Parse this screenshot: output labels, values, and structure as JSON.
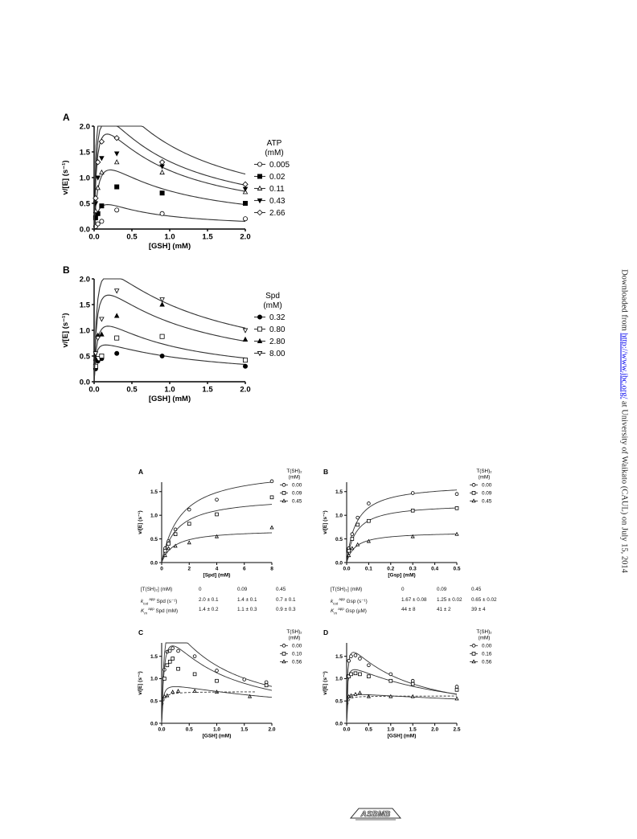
{
  "sidebar": {
    "prefix": "Downloaded from ",
    "link": "http://www.jbc.org/",
    "suffix": " at University of Waikato (CAUL) on July 15, 2014"
  },
  "logo_text": "ASBMB",
  "figA": {
    "panel": "A",
    "chart_data": {
      "type": "scatter",
      "xlabel": "[GSH] (mM)",
      "ylabel": "v/[E] (s⁻¹)",
      "xlim": [
        0,
        2.0
      ],
      "ylim": [
        0,
        2.0
      ],
      "xticks": [
        "0.0",
        "0.5",
        "1.0",
        "1.5",
        "2.0"
      ],
      "yticks": [
        "0.0",
        "0.5",
        "1.0",
        "1.5",
        "2.0"
      ],
      "legend_title": [
        "ATP",
        "(mM)"
      ],
      "legend_placement": "right",
      "series": [
        {
          "name": "0.005",
          "marker": "circle-open",
          "x": [
            0.02,
            0.05,
            0.1,
            0.3,
            0.9,
            2.0
          ],
          "y": [
            0.05,
            0.1,
            0.15,
            0.37,
            0.3,
            0.2
          ],
          "curve": {
            "a": 0.9,
            "b": 0.08,
            "c": 0.4
          }
        },
        {
          "name": "0.02",
          "marker": "square-filled",
          "x": [
            0.02,
            0.05,
            0.1,
            0.3,
            0.9,
            2.0
          ],
          "y": [
            0.22,
            0.3,
            0.45,
            0.82,
            0.7,
            0.5
          ],
          "curve": {
            "a": 1.85,
            "b": 0.065,
            "c": 0.7
          }
        },
        {
          "name": "0.11",
          "marker": "triangle-open",
          "x": [
            0.02,
            0.05,
            0.1,
            0.3,
            0.9,
            2.0
          ],
          "y": [
            0.35,
            0.8,
            1.1,
            1.3,
            1.1,
            0.72
          ],
          "curve": {
            "a": 2.7,
            "b": 0.04,
            "c": 0.75
          }
        },
        {
          "name": "0.43",
          "marker": "triangle-down-filled",
          "x": [
            0.02,
            0.05,
            0.1,
            0.3,
            0.9,
            2.0
          ],
          "y": [
            0.5,
            1.0,
            1.38,
            1.47,
            1.22,
            0.78
          ],
          "curve": {
            "a": 3.0,
            "b": 0.035,
            "c": 0.8
          }
        },
        {
          "name": "2.66",
          "marker": "diamond-open",
          "x": [
            0.02,
            0.05,
            0.1,
            0.3,
            0.9,
            2.0
          ],
          "y": [
            0.6,
            1.3,
            1.7,
            1.77,
            1.3,
            0.87
          ],
          "curve": {
            "a": 3.6,
            "b": 0.03,
            "c": 0.85
          }
        }
      ]
    }
  },
  "figB": {
    "panel": "B",
    "chart_data": {
      "type": "scatter",
      "xlabel": "[GSH] (mM)",
      "ylabel": "v/[E] (s⁻¹)",
      "xlim": [
        0,
        2.0
      ],
      "ylim": [
        0,
        2.0
      ],
      "xticks": [
        "0.0",
        "0.5",
        "1.0",
        "1.5",
        "2.0"
      ],
      "yticks": [
        "0.0",
        "0.5",
        "1.0",
        "1.5",
        "2.0"
      ],
      "legend_title": [
        "Spd",
        "(mM)"
      ],
      "legend_placement": "right",
      "series": [
        {
          "name": "0.32",
          "marker": "circle-filled",
          "x": [
            0.02,
            0.05,
            0.1,
            0.3,
            0.9,
            2.0
          ],
          "y": [
            0.25,
            0.4,
            0.45,
            0.55,
            0.5,
            0.3
          ],
          "curve": {
            "a": 0.9,
            "b": 0.02,
            "c": 1.2
          }
        },
        {
          "name": "0.80",
          "marker": "square-open",
          "x": [
            0.02,
            0.05,
            0.1,
            0.3,
            0.9,
            2.0
          ],
          "y": [
            0.3,
            0.45,
            0.5,
            0.85,
            0.88,
            0.42
          ],
          "curve": {
            "a": 1.55,
            "b": 0.04,
            "c": 0.85
          }
        },
        {
          "name": "2.80",
          "marker": "triangle-filled",
          "x": [
            0.02,
            0.05,
            0.1,
            0.3,
            0.9,
            2.0
          ],
          "y": [
            0.45,
            0.9,
            0.92,
            1.28,
            1.5,
            0.82
          ],
          "curve": {
            "a": 2.3,
            "b": 0.035,
            "c": 1.05
          }
        },
        {
          "name": "8.00",
          "marker": "triangle-down-open",
          "x": [
            0.02,
            0.05,
            0.1,
            0.3,
            0.9,
            2.0
          ],
          "y": [
            0.55,
            0.85,
            1.22,
            1.77,
            1.6,
            1.0
          ],
          "curve": {
            "a": 2.8,
            "b": 0.035,
            "c": 1.2
          }
        }
      ]
    }
  },
  "fig2A": {
    "panel": "A",
    "chart_data": {
      "type": "scatter",
      "xlabel": "[Spd] (mM)",
      "ylabel": "v/[E] (s⁻¹)",
      "xlim": [
        0,
        8
      ],
      "ylim": [
        0,
        1.7
      ],
      "xticks": [
        "0",
        "2",
        "4",
        "6",
        "8"
      ],
      "yticks": [
        "0.0",
        "0.5",
        "1.0",
        "1.5"
      ],
      "legend_title": [
        "T(SH)₂",
        "(mM)"
      ],
      "legend_placement": "top-right",
      "series": [
        {
          "name": "0.00",
          "marker": "circle-open",
          "x": [
            0.25,
            0.5,
            1,
            2,
            4,
            8
          ],
          "y": [
            0.3,
            0.45,
            0.7,
            1.12,
            1.33,
            1.72
          ],
          "curve": {
            "type": "mm",
            "vmax": 2.0,
            "km": 1.4
          }
        },
        {
          "name": "0.09",
          "marker": "square-open",
          "x": [
            0.25,
            0.5,
            1,
            2,
            4,
            8
          ],
          "y": [
            0.25,
            0.4,
            0.6,
            0.82,
            1.02,
            1.38
          ],
          "curve": {
            "type": "mm",
            "vmax": 1.4,
            "km": 1.1
          }
        },
        {
          "name": "0.45",
          "marker": "triangle-open",
          "x": [
            0.25,
            0.5,
            1,
            2,
            4,
            8
          ],
          "y": [
            0.15,
            0.3,
            0.35,
            0.42,
            0.55,
            0.74
          ],
          "curve": {
            "type": "mm",
            "vmax": 0.7,
            "km": 0.9
          }
        }
      ]
    },
    "table": {
      "header": {
        "label": "[T(SH)₂] (mM)",
        "values": [
          "0",
          "0.09",
          "0.45"
        ]
      },
      "rows": [
        {
          "label": "k",
          "sub": "cat",
          "sup": " app",
          "tail": " Spd (s⁻¹)",
          "values": [
            "2.0 ± 0.1",
            "1.4 ± 0.1",
            "0.7 ± 0.1"
          ]
        },
        {
          "label": "K",
          "sub": "m",
          "sup": " app",
          "tail": " Spd (mM)",
          "values": [
            "1.4 ± 0.2",
            "1.1 ± 0.3",
            "0.9 ± 0.3"
          ]
        }
      ]
    }
  },
  "fig2B": {
    "panel": "B",
    "chart_data": {
      "type": "scatter",
      "xlabel": "[Gsp] (mM)",
      "ylabel": "v/[E] (s⁻¹)",
      "xlim": [
        0,
        0.5
      ],
      "ylim": [
        0,
        1.7
      ],
      "xticks": [
        "0.0",
        "0.1",
        "0.2",
        "0.3",
        "0.4",
        "0.5"
      ],
      "yticks": [
        "0.0",
        "0.5",
        "1.0",
        "1.5"
      ],
      "legend_title": [
        "T(SH)₂",
        "(mM)"
      ],
      "legend_placement": "top-right",
      "series": [
        {
          "name": "0.00",
          "marker": "circle-open",
          "x": [
            0.01,
            0.025,
            0.05,
            0.1,
            0.3,
            0.5
          ],
          "y": [
            0.3,
            0.6,
            0.95,
            1.25,
            1.47,
            1.45
          ],
          "curve": {
            "type": "mm",
            "vmax": 1.67,
            "km": 0.044
          }
        },
        {
          "name": "0.09",
          "marker": "square-open",
          "x": [
            0.01,
            0.025,
            0.05,
            0.1,
            0.3,
            0.5
          ],
          "y": [
            0.25,
            0.5,
            0.8,
            0.88,
            1.1,
            1.15
          ],
          "curve": {
            "type": "mm",
            "vmax": 1.25,
            "km": 0.041
          }
        },
        {
          "name": "0.45",
          "marker": "triangle-open",
          "x": [
            0.01,
            0.025,
            0.05,
            0.1,
            0.3,
            0.5
          ],
          "y": [
            0.15,
            0.3,
            0.38,
            0.45,
            0.55,
            0.6
          ],
          "curve": {
            "type": "mm",
            "vmax": 0.65,
            "km": 0.039
          }
        }
      ]
    },
    "table": {
      "header": {
        "label": "[T(SH)₂] (mM)",
        "values": [
          "0",
          "0.09",
          "0.45"
        ]
      },
      "rows": [
        {
          "label": "k",
          "sub": "cat",
          "sup": " app",
          "tail": " Gsp (s⁻¹)",
          "values": [
            "1.67 ± 0.08",
            "1.25 ± 0.02",
            "0.65 ± 0.02"
          ]
        },
        {
          "label": "K",
          "sub": "m",
          "sup": " app",
          "tail": " Gsp (µM)",
          "values": [
            "44 ± 8",
            "41 ± 2",
            "39 ± 4"
          ]
        }
      ]
    }
  },
  "fig2C": {
    "panel": "C",
    "chart_data": {
      "type": "scatter",
      "xlabel": "[GSH] (mM)",
      "ylabel": "v/[E] (s⁻¹)",
      "xlim": [
        0,
        2.0
      ],
      "ylim": [
        0,
        1.8
      ],
      "xticks": [
        "0.0",
        "0.5",
        "1.0",
        "1.5",
        "2.0"
      ],
      "yticks": [
        "0.0",
        "0.5",
        "1.0",
        "1.5"
      ],
      "legend_title": [
        "T(SH)₂",
        "(mM)"
      ],
      "legend_placement": "top-right",
      "series": [
        {
          "name": "0.00",
          "marker": "circle-open",
          "x": [
            0.05,
            0.1,
            0.15,
            0.2,
            0.3,
            0.6,
            1.0,
            1.5,
            1.9
          ],
          "y": [
            1.2,
            1.6,
            1.62,
            1.68,
            1.62,
            1.5,
            1.18,
            0.98,
            0.92
          ],
          "curve": {
            "a": 3.2,
            "b": 0.05,
            "c": 0.7
          }
        },
        {
          "name": "0.10",
          "marker": "square-open",
          "x": [
            0.05,
            0.1,
            0.15,
            0.2,
            0.3,
            0.6,
            1.0,
            1.9
          ],
          "y": [
            1.0,
            1.3,
            1.38,
            1.45,
            1.22,
            1.1,
            0.95,
            0.85
          ],
          "curve": {
            "a": 2.6,
            "b": 0.05,
            "c": 0.8
          }
        },
        {
          "name": "0.56",
          "marker": "triangle-open",
          "x": [
            0.05,
            0.1,
            0.2,
            0.3,
            0.6,
            1.0,
            1.6
          ],
          "y": [
            0.6,
            0.62,
            0.7,
            0.72,
            0.72,
            0.7,
            0.6
          ],
          "curve": {
            "a": 0.95,
            "b": 0.02,
            "c": 3.2
          }
        }
      ]
    }
  },
  "fig2D": {
    "panel": "D",
    "chart_data": {
      "type": "scatter",
      "xlabel": "[GSH] (mM)",
      "ylabel": "v/[E] (s⁻¹)",
      "xlim": [
        0,
        2.5
      ],
      "ylim": [
        0,
        1.8
      ],
      "xticks": [
        "0.0",
        "0.5",
        "1.0",
        "1.5",
        "2.0",
        "2.5"
      ],
      "yticks": [
        "0.0",
        "0.5",
        "1.0",
        "1.5"
      ],
      "legend_title": [
        "T(SH)₂",
        "(mM)"
      ],
      "legend_placement": "top-right",
      "series": [
        {
          "name": "0.00",
          "marker": "circle-open",
          "x": [
            0.05,
            0.1,
            0.2,
            0.3,
            0.5,
            1.0,
            1.5,
            2.5
          ],
          "y": [
            1.4,
            1.5,
            1.52,
            1.45,
            1.3,
            1.1,
            0.95,
            0.82
          ],
          "curve": {
            "a": 2.0,
            "b": 0.02,
            "c": 1.2
          }
        },
        {
          "name": "0.16",
          "marker": "square-open",
          "x": [
            0.05,
            0.1,
            0.2,
            0.3,
            0.5,
            1.0,
            1.5,
            2.5
          ],
          "y": [
            1.05,
            1.1,
            1.12,
            1.1,
            1.05,
            0.95,
            0.88,
            0.75
          ],
          "curve": {
            "a": 1.4,
            "b": 0.015,
            "c": 2.2
          }
        },
        {
          "name": "0.56",
          "marker": "triangle-open",
          "x": [
            0.05,
            0.1,
            0.2,
            0.3,
            0.5,
            1.0,
            1.5,
            2.5
          ],
          "y": [
            0.6,
            0.62,
            0.65,
            0.68,
            0.6,
            0.6,
            0.6,
            0.55
          ],
          "curve": {
            "a": 0.68,
            "b": 0.008,
            "c": 10
          }
        }
      ]
    }
  }
}
